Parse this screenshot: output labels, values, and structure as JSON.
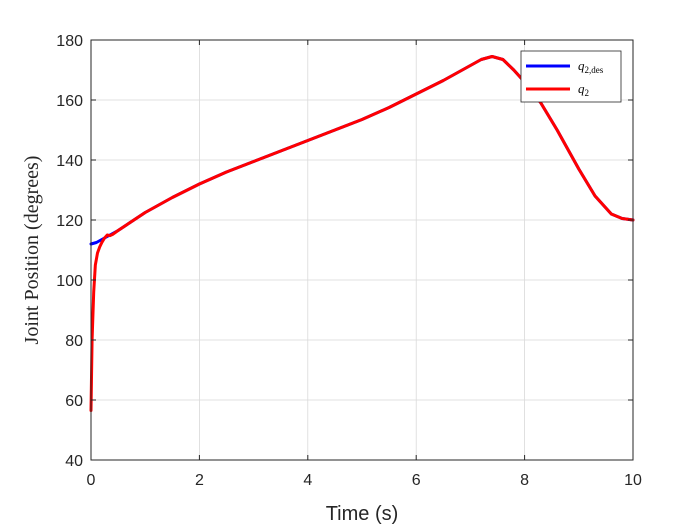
{
  "chart_data": {
    "type": "line",
    "xlabel": "Time (s)",
    "ylabel": "Joint Position (degrees)",
    "xlim": [
      0,
      10
    ],
    "ylim": [
      40,
      180
    ],
    "xticks": [
      0,
      2,
      4,
      6,
      8,
      10
    ],
    "yticks": [
      40,
      60,
      80,
      100,
      120,
      140,
      160,
      180
    ],
    "grid": true,
    "legend_position": "top-right",
    "series": [
      {
        "name_main": "q",
        "name_sub": "2,des",
        "color": "#0000ff",
        "x": [
          0,
          0.1,
          0.2,
          0.3,
          0.5,
          1.0,
          1.5,
          2.0,
          2.5,
          3.0,
          3.5,
          4.0,
          4.5,
          5.0,
          5.5,
          6.0,
          6.5,
          7.0,
          7.2,
          7.4,
          7.6,
          7.8,
          8.0,
          8.3,
          8.6,
          9.0,
          9.3,
          9.6,
          9.8,
          10.0
        ],
        "y": [
          112,
          112.5,
          113.5,
          114.5,
          116.5,
          122.5,
          127.5,
          132,
          136,
          139.5,
          143,
          146.5,
          150,
          153.5,
          157.5,
          162,
          166.5,
          171.5,
          173.5,
          174.5,
          173.5,
          170,
          166,
          159,
          150,
          137,
          128,
          122,
          120.5,
          120
        ]
      },
      {
        "name_main": "q",
        "name_sub": "2",
        "color": "#ff0000",
        "x": [
          0,
          0.02,
          0.05,
          0.08,
          0.12,
          0.16,
          0.2,
          0.25,
          0.3,
          0.35,
          0.4,
          0.5,
          1.0,
          1.5,
          2.0,
          2.5,
          3.0,
          3.5,
          4.0,
          4.5,
          5.0,
          5.5,
          6.0,
          6.5,
          7.0,
          7.2,
          7.4,
          7.6,
          7.8,
          8.0,
          8.3,
          8.6,
          9.0,
          9.3,
          9.6,
          9.8,
          10.0
        ],
        "y": [
          56.5,
          80,
          96,
          105,
          109,
          111,
          112.5,
          114,
          115,
          114.8,
          115.2,
          116.5,
          122.5,
          127.5,
          132,
          136,
          139.5,
          143,
          146.5,
          150,
          153.5,
          157.5,
          162,
          166.5,
          171.5,
          173.5,
          174.5,
          173.5,
          170,
          166,
          159,
          150,
          137,
          128,
          122,
          120.5,
          120
        ]
      }
    ]
  }
}
